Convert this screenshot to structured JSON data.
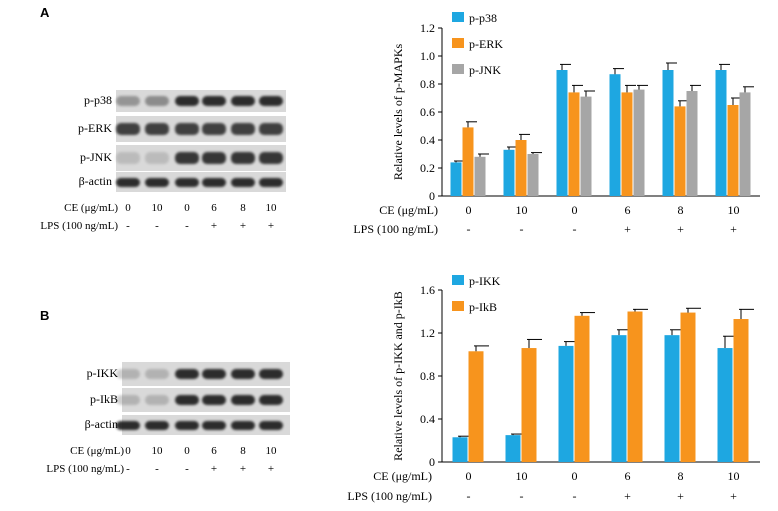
{
  "colors": {
    "blue": "#1ea7e1",
    "orange": "#f7941d",
    "gray": "#a6a6a6",
    "band": "#1a1a1a"
  },
  "panels": [
    {
      "letter": "A",
      "blots": [
        {
          "label": "p-p38",
          "intensity": [
            0.35,
            0.4,
            0.9,
            0.9,
            0.9,
            0.9
          ]
        },
        {
          "label": "p-ERK",
          "intensity": [
            0.8,
            0.8,
            0.8,
            0.8,
            0.8,
            0.8
          ]
        },
        {
          "label": "p-JNK",
          "intensity": [
            0.15,
            0.15,
            0.85,
            0.85,
            0.85,
            0.85
          ]
        },
        {
          "label": "β-actin",
          "intensity": [
            0.9,
            0.9,
            0.9,
            0.9,
            0.9,
            0.9
          ]
        }
      ],
      "ce_label": "CE (μg/mL)",
      "ce_values": [
        "0",
        "10",
        "0",
        "6",
        "8",
        "10"
      ],
      "lps_label": "LPS (100 ng/mL)",
      "lps_values": [
        "-",
        "-",
        "-",
        "+",
        "+",
        "+"
      ]
    },
    {
      "letter": "B",
      "blots": [
        {
          "label": "p-IKK",
          "intensity": [
            0.2,
            0.2,
            0.9,
            0.9,
            0.9,
            0.9
          ]
        },
        {
          "label": "p-IkB",
          "intensity": [
            0.2,
            0.2,
            0.9,
            0.9,
            0.9,
            0.9
          ]
        },
        {
          "label": "β-actin",
          "intensity": [
            0.9,
            0.9,
            0.9,
            0.9,
            0.9,
            0.9
          ]
        }
      ],
      "ce_label": "CE (μg/mL)",
      "ce_values": [
        "0",
        "10",
        "0",
        "6",
        "8",
        "10"
      ],
      "lps_label": "LPS (100 ng/mL)",
      "lps_values": [
        "-",
        "-",
        "-",
        "+",
        "+",
        "+"
      ]
    }
  ],
  "chart_data": [
    {
      "type": "bar",
      "ylabel": "Relative levels of p-MAPKs",
      "ylim": [
        0,
        1.2
      ],
      "yticks": [
        "0",
        "0.2",
        "0.4",
        "0.6",
        "0.8",
        "1.0",
        "1.2"
      ],
      "legend_position": "top-left",
      "categories": [
        "0",
        "10",
        "0",
        "6",
        "8",
        "10"
      ],
      "ce_label": "CE (μg/mL)",
      "lps_label": "LPS (100 ng/mL)",
      "lps_values": [
        "-",
        "-",
        "-",
        "+",
        "+",
        "+"
      ],
      "series": [
        {
          "name": "p-p38",
          "color": "#1ea7e1",
          "values": [
            0.24,
            0.33,
            0.9,
            0.87,
            0.9,
            0.9
          ],
          "errors": [
            0.01,
            0.02,
            0.04,
            0.04,
            0.05,
            0.04
          ]
        },
        {
          "name": "p-ERK",
          "color": "#f7941d",
          "values": [
            0.49,
            0.4,
            0.74,
            0.74,
            0.64,
            0.65
          ],
          "errors": [
            0.04,
            0.04,
            0.05,
            0.05,
            0.04,
            0.05
          ]
        },
        {
          "name": "p-JNK",
          "color": "#a6a6a6",
          "values": [
            0.28,
            0.3,
            0.71,
            0.76,
            0.75,
            0.74
          ],
          "errors": [
            0.02,
            0.01,
            0.04,
            0.03,
            0.04,
            0.04
          ]
        }
      ]
    },
    {
      "type": "bar",
      "ylabel": "Relative levels of p-IKK and p-IkB",
      "ylim": [
        0,
        1.6
      ],
      "yticks": [
        "0",
        "0.4",
        "0.8",
        "1.2",
        "1.6"
      ],
      "legend_position": "top-left",
      "categories": [
        "0",
        "10",
        "0",
        "6",
        "8",
        "10"
      ],
      "ce_label": "CE (μg/mL)",
      "lps_label": "LPS (100 ng/mL)",
      "lps_values": [
        "-",
        "-",
        "-",
        "+",
        "+",
        "+"
      ],
      "series": [
        {
          "name": "p-IKK",
          "color": "#1ea7e1",
          "values": [
            0.23,
            0.25,
            1.08,
            1.18,
            1.18,
            1.06
          ],
          "errors": [
            0.01,
            0.01,
            0.04,
            0.05,
            0.05,
            0.11
          ]
        },
        {
          "name": "p-IkB",
          "color": "#f7941d",
          "values": [
            1.03,
            1.06,
            1.36,
            1.4,
            1.39,
            1.33
          ],
          "errors": [
            0.05,
            0.08,
            0.03,
            0.02,
            0.04,
            0.09
          ]
        }
      ]
    }
  ]
}
